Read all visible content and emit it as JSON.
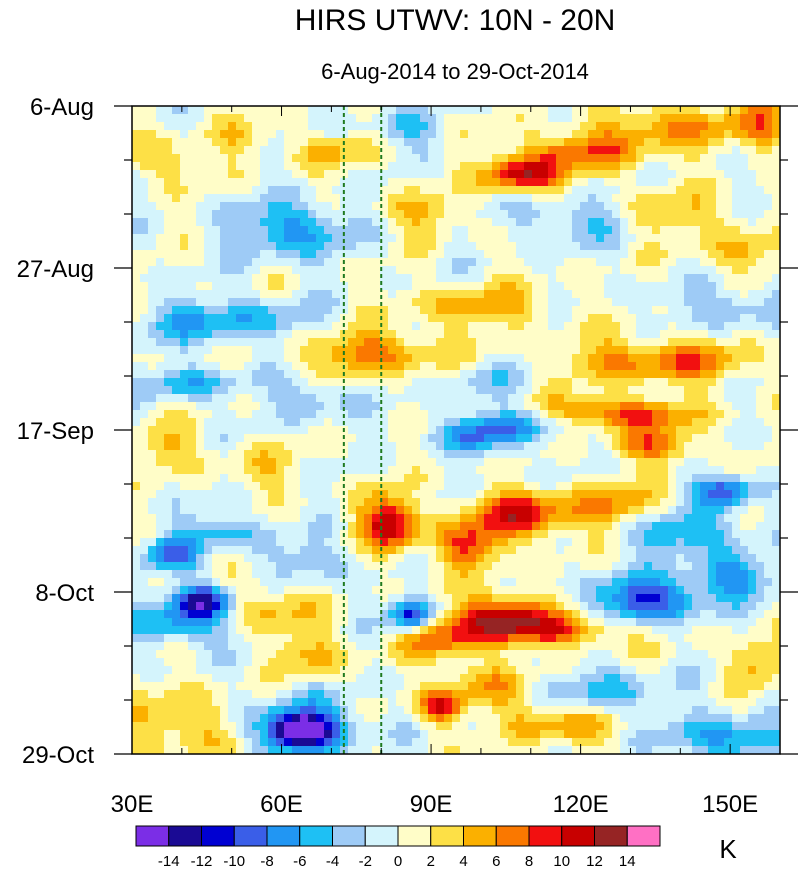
{
  "chart_data": {
    "type": "heatmap",
    "title": "HIRS UTWV: 10N - 20N",
    "subtitle": "6-Aug-2014 to 29-Oct-2014",
    "xlabel": "",
    "ylabel": "",
    "x_range": [
      30,
      160
    ],
    "x_ticks": [
      {
        "value": 30,
        "label": "30E"
      },
      {
        "value": 60,
        "label": "60E"
      },
      {
        "value": 90,
        "label": "90E"
      },
      {
        "value": 120,
        "label": "120E"
      },
      {
        "value": 150,
        "label": "150E"
      }
    ],
    "x_minor_step": 10,
    "y_range_days": [
      0,
      84
    ],
    "y_ticks": [
      {
        "value": 0,
        "label": "6-Aug"
      },
      {
        "value": 21,
        "label": "27-Aug"
      },
      {
        "value": 42,
        "label": "17-Sep"
      },
      {
        "value": 63,
        "label": "8-Oct"
      },
      {
        "value": 84,
        "label": "29-Oct"
      }
    ],
    "y_minor_step": 7,
    "reference_lines_lon": [
      72.5,
      80
    ],
    "colorbar": {
      "unit": "K",
      "levels": [
        -14,
        -12,
        -10,
        -8,
        -6,
        -4,
        -2,
        0,
        2,
        4,
        6,
        8,
        10,
        12,
        14
      ],
      "tick_labels": [
        "-14",
        "-12",
        "-10",
        "-8",
        "-6",
        "-4",
        "-2",
        "0",
        "2",
        "4",
        "6",
        "8",
        "10",
        "12",
        "14"
      ],
      "colors": [
        "#7b2ee6",
        "#1a0a94",
        "#0000d2",
        "#3a5ee8",
        "#2196f3",
        "#1ec0f4",
        "#9ecbf6",
        "#d4f4fc",
        "#fffdc8",
        "#fde046",
        "#fbb000",
        "#fa7800",
        "#f21010",
        "#c80000",
        "#962424",
        "#ff70c4"
      ]
    },
    "features": [
      {
        "lon": 108,
        "day": 9,
        "value": 11,
        "lon_spread": 5,
        "day_spread": 1.5
      },
      {
        "lon": 120,
        "day": 6,
        "value": 7,
        "lon_spread": 10,
        "day_spread": 2
      },
      {
        "lon": 140,
        "day": 2.5,
        "value": 6,
        "lon_spread": 10,
        "day_spread": 2
      },
      {
        "lon": 157,
        "day": 2,
        "value": 6,
        "lon_spread": 3,
        "day_spread": 3
      },
      {
        "lon": 62,
        "day": 16,
        "value": -7,
        "lon_spread": 8,
        "day_spread": 2.5
      },
      {
        "lon": 48,
        "day": 28,
        "value": -6,
        "lon_spread": 12,
        "day_spread": 2
      },
      {
        "lon": 42,
        "day": 36,
        "value": -5,
        "lon_spread": 8,
        "day_spread": 1.5
      },
      {
        "lon": 78,
        "day": 32,
        "value": 7,
        "lon_spread": 10,
        "day_spread": 2
      },
      {
        "lon": 100,
        "day": 26,
        "value": 5,
        "lon_spread": 10,
        "day_spread": 2
      },
      {
        "lon": 125,
        "day": 40,
        "value": 10,
        "lon_spread": 12,
        "day_spread": 1.5
      },
      {
        "lon": 130,
        "day": 33,
        "value": 6,
        "lon_spread": 10,
        "day_spread": 2
      },
      {
        "lon": 110,
        "day": 41,
        "value": -7,
        "lon_spread": 10,
        "day_spread": 1.5
      },
      {
        "lon": 100,
        "day": 43,
        "value": -6,
        "lon_spread": 6,
        "day_spread": 1.5
      },
      {
        "lon": 135,
        "day": 44,
        "value": 7,
        "lon_spread": 6,
        "day_spread": 1.5
      },
      {
        "lon": 82,
        "day": 54,
        "value": 12,
        "lon_spread": 4,
        "day_spread": 2.5
      },
      {
        "lon": 108,
        "day": 53,
        "value": 10,
        "lon_spread": 7,
        "day_spread": 2
      },
      {
        "lon": 98,
        "day": 57,
        "value": 8,
        "lon_spread": 5,
        "day_spread": 2
      },
      {
        "lon": 128,
        "day": 52,
        "value": 6,
        "lon_spread": 8,
        "day_spread": 2
      },
      {
        "lon": 149,
        "day": 50,
        "value": -10,
        "lon_spread": 4,
        "day_spread": 1.5
      },
      {
        "lon": 140,
        "day": 55,
        "value": -7,
        "lon_spread": 8,
        "day_spread": 2
      },
      {
        "lon": 133,
        "day": 64,
        "value": -11,
        "lon_spread": 7,
        "day_spread": 2
      },
      {
        "lon": 150,
        "day": 61,
        "value": -7,
        "lon_spread": 6,
        "day_spread": 2
      },
      {
        "lon": 104,
        "day": 66,
        "value": 11,
        "lon_spread": 6,
        "day_spread": 2
      },
      {
        "lon": 115,
        "day": 68,
        "value": 8,
        "lon_spread": 10,
        "day_spread": 1.5
      },
      {
        "lon": 92,
        "day": 69,
        "value": 7,
        "lon_spread": 6,
        "day_spread": 2
      },
      {
        "lon": 86,
        "day": 66,
        "value": -12,
        "lon_spread": 3,
        "day_spread": 1.5
      },
      {
        "lon": 44,
        "day": 64,
        "value": -12,
        "lon_spread": 4,
        "day_spread": 1.5
      },
      {
        "lon": 40,
        "day": 67,
        "value": -7,
        "lon_spread": 6,
        "day_spread": 2
      },
      {
        "lon": 38,
        "day": 58,
        "value": -8,
        "lon_spread": 4,
        "day_spread": 1.5
      },
      {
        "lon": 48,
        "day": 55,
        "value": -6,
        "lon_spread": 5,
        "day_spread": 1.5
      },
      {
        "lon": 58,
        "day": 65,
        "value": 5,
        "lon_spread": 6,
        "day_spread": 2
      },
      {
        "lon": 64,
        "day": 81,
        "value": -15,
        "lon_spread": 3.5,
        "day_spread": 1.2
      },
      {
        "lon": 64,
        "day": 80.5,
        "value": -9,
        "lon_spread": 8,
        "day_spread": 2.5
      },
      {
        "lon": 40,
        "day": 80,
        "value": 5,
        "lon_spread": 8,
        "day_spread": 3
      },
      {
        "lon": 92,
        "day": 78,
        "value": 10,
        "lon_spread": 3,
        "day_spread": 1.5
      },
      {
        "lon": 100,
        "day": 75,
        "value": 5,
        "lon_spread": 6,
        "day_spread": 2
      },
      {
        "lon": 115,
        "day": 80,
        "value": 6,
        "lon_spread": 7,
        "day_spread": 2
      },
      {
        "lon": 125,
        "day": 76,
        "value": -5,
        "lon_spread": 8,
        "day_spread": 2
      },
      {
        "lon": 150,
        "day": 82,
        "value": -7,
        "lon_spread": 8,
        "day_spread": 2
      },
      {
        "lon": 155,
        "day": 72,
        "value": 5,
        "lon_spread": 4,
        "day_spread": 2
      },
      {
        "lon": 145,
        "day": 33,
        "value": 4,
        "lon_spread": 8,
        "day_spread": 2
      },
      {
        "lon": 150,
        "day": 26,
        "value": -4,
        "lon_spread": 8,
        "day_spread": 2
      },
      {
        "lon": 152,
        "day": 19,
        "value": 4,
        "lon_spread": 6,
        "day_spread": 2
      },
      {
        "lon": 118,
        "day": 15,
        "value": -4,
        "lon_spread": 8,
        "day_spread": 2
      },
      {
        "lon": 88,
        "day": 14,
        "value": 4,
        "lon_spread": 6,
        "day_spread": 2
      },
      {
        "lon": 36,
        "day": 44,
        "value": 4,
        "lon_spread": 5,
        "day_spread": 2
      },
      {
        "lon": 55,
        "day": 47,
        "value": 3,
        "lon_spread": 6,
        "day_spread": 2
      },
      {
        "lon": 66,
        "day": 38,
        "value": -4,
        "lon_spread": 5,
        "day_spread": 2
      },
      {
        "lon": 66,
        "day": 59,
        "value": -4,
        "lon_spread": 5,
        "day_spread": 2
      },
      {
        "lon": 66,
        "day": 71,
        "value": 5,
        "lon_spread": 5,
        "day_spread": 2
      },
      {
        "lon": 140,
        "day": 14,
        "value": 4,
        "lon_spread": 8,
        "day_spread": 2
      },
      {
        "lon": 36,
        "day": 7,
        "value": 4,
        "lon_spread": 6,
        "day_spread": 2
      },
      {
        "lon": 52,
        "day": 4,
        "value": 3,
        "lon_spread": 5,
        "day_spread": 1.5
      },
      {
        "lon": 70,
        "day": 6,
        "value": 4,
        "lon_spread": 6,
        "day_spread": 1.5
      },
      {
        "lon": 85,
        "day": 3,
        "value": -4,
        "lon_spread": 5,
        "day_spread": 1.5
      },
      {
        "lon": 100,
        "day": 36,
        "value": -3,
        "lon_spread": 6,
        "day_spread": 2
      }
    ]
  }
}
